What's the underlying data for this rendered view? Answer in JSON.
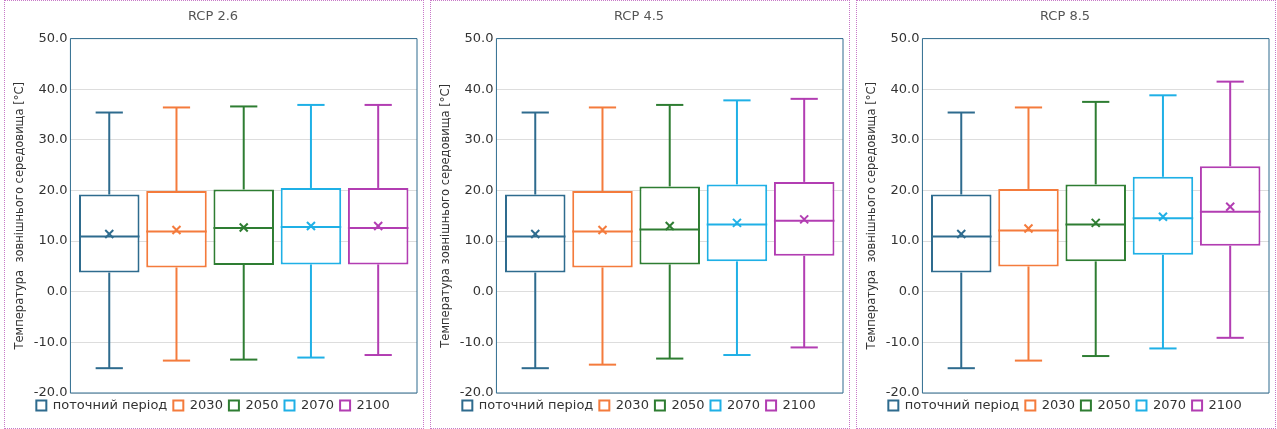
{
  "chart_data": [
    {
      "type": "box",
      "title": "RCP 2.6",
      "ylabel": "Температура  зовнішнього середовища [°C]",
      "categories": [
        null
      ],
      "ylim": [
        -20,
        50
      ],
      "yticks": [
        {
          "value": -20,
          "label": "-20.0"
        },
        {
          "value": -10,
          "label": "-10.0"
        },
        {
          "value": 0,
          "label": "0.0"
        },
        {
          "value": 10,
          "label": "10.0"
        },
        {
          "value": 20,
          "label": "20.0"
        },
        {
          "value": 30,
          "label": "30.0"
        },
        {
          "value": 40,
          "label": "40.0"
        },
        {
          "value": 50,
          "label": "50.0"
        }
      ],
      "grid": "y",
      "legend": "bottom",
      "tick_labels": "y",
      "series": [
        {
          "name": "поточний період",
          "color": "#2e6b8e",
          "boxes": [
            {
              "low": -15.1,
              "q1": 3.8,
              "median": 10.9,
              "q3": 19.2,
              "high": 35.4,
              "mean": 11.4
            }
          ]
        },
        {
          "name": "2030",
          "color": "#f47b3c",
          "boxes": [
            {
              "low": -13.6,
              "q1": 4.8,
              "median": 11.9,
              "q3": 19.9,
              "high": 36.4,
              "mean": 12.2
            }
          ]
        },
        {
          "name": "2050",
          "color": "#2e7d32",
          "boxes": [
            {
              "low": -13.4,
              "q1": 5.3,
              "median": 12.6,
              "q3": 20.2,
              "high": 36.6,
              "mean": 12.7
            }
          ]
        },
        {
          "name": "2070",
          "color": "#1fb0e6",
          "boxes": [
            {
              "low": -13.0,
              "q1": 5.4,
              "median": 12.8,
              "q3": 20.5,
              "high": 36.9,
              "mean": 13.0
            }
          ]
        },
        {
          "name": "2100",
          "color": "#b23db2",
          "boxes": [
            {
              "low": -12.5,
              "q1": 5.4,
              "median": 12.6,
              "q3": 20.5,
              "high": 36.9,
              "mean": 13.0
            }
          ]
        }
      ]
    },
    {
      "type": "box",
      "title": "RCP 4.5",
      "ylabel": "Температура зовнішнього середовища [°C]",
      "categories": [
        null
      ],
      "ylim": [
        -20,
        50
      ],
      "yticks": [
        {
          "value": -20,
          "label": "-20.0"
        },
        {
          "value": -10,
          "label": "-10.0"
        },
        {
          "value": 0,
          "label": "0.0"
        },
        {
          "value": 10,
          "label": "10.0"
        },
        {
          "value": 20,
          "label": "20.0"
        },
        {
          "value": 30,
          "label": "30.0"
        },
        {
          "value": 40,
          "label": "40.0"
        },
        {
          "value": 50,
          "label": "50.0"
        }
      ],
      "grid": "y",
      "legend": "bottom",
      "tick_labels": "y",
      "series": [
        {
          "name": "поточний період",
          "color": "#2e6b8e",
          "boxes": [
            {
              "low": -15.1,
              "q1": 3.8,
              "median": 10.9,
              "q3": 19.2,
              "high": 35.4,
              "mean": 11.4
            }
          ]
        },
        {
          "name": "2030",
          "color": "#f47b3c",
          "boxes": [
            {
              "low": -14.4,
              "q1": 4.8,
              "median": 11.9,
              "q3": 19.9,
              "high": 36.4,
              "mean": 12.2
            }
          ]
        },
        {
          "name": "2050",
          "color": "#2e7d32",
          "boxes": [
            {
              "low": -13.2,
              "q1": 5.4,
              "median": 12.3,
              "q3": 20.8,
              "high": 36.9,
              "mean": 13.0
            }
          ]
        },
        {
          "name": "2070",
          "color": "#1fb0e6",
          "boxes": [
            {
              "low": -12.5,
              "q1": 6.0,
              "median": 13.3,
              "q3": 21.2,
              "high": 37.8,
              "mean": 13.6
            }
          ]
        },
        {
          "name": "2100",
          "color": "#b23db2",
          "boxes": [
            {
              "low": -11.0,
              "q1": 7.1,
              "median": 14.0,
              "q3": 21.7,
              "high": 38.1,
              "mean": 14.3
            }
          ]
        }
      ]
    },
    {
      "type": "box",
      "title": "RCP 8.5",
      "ylabel": "Температура  зовнішнього середовища [°C]",
      "categories": [
        null
      ],
      "ylim": [
        -20,
        50
      ],
      "yticks": [
        {
          "value": -20,
          "label": "-20.0"
        },
        {
          "value": -10,
          "label": "-10.0"
        },
        {
          "value": 0,
          "label": "0.0"
        },
        {
          "value": 10,
          "label": "10.0"
        },
        {
          "value": 20,
          "label": "20.0"
        },
        {
          "value": 30,
          "label": "30.0"
        },
        {
          "value": 40,
          "label": "40.0"
        },
        {
          "value": 50,
          "label": "50.0"
        }
      ],
      "grid": "y",
      "legend": "bottom",
      "tick_labels": "y",
      "series": [
        {
          "name": "поточний період",
          "color": "#2e6b8e",
          "boxes": [
            {
              "low": -15.1,
              "q1": 3.8,
              "median": 10.9,
              "q3": 19.2,
              "high": 35.4,
              "mean": 11.4
            }
          ]
        },
        {
          "name": "2030",
          "color": "#f47b3c",
          "boxes": [
            {
              "low": -13.6,
              "q1": 5.0,
              "median": 12.1,
              "q3": 20.3,
              "high": 36.4,
              "mean": 12.5
            }
          ]
        },
        {
          "name": "2050",
          "color": "#2e7d32",
          "boxes": [
            {
              "low": -12.7,
              "q1": 6.0,
              "median": 13.3,
              "q3": 21.2,
              "high": 37.5,
              "mean": 13.6
            }
          ]
        },
        {
          "name": "2070",
          "color": "#1fb0e6",
          "boxes": [
            {
              "low": -11.2,
              "q1": 7.3,
              "median": 14.5,
              "q3": 22.7,
              "high": 38.8,
              "mean": 14.8
            }
          ]
        },
        {
          "name": "2100",
          "color": "#b23db2",
          "boxes": [
            {
              "low": -9.1,
              "q1": 9.1,
              "median": 15.8,
              "q3": 24.8,
              "high": 41.5,
              "mean": 16.8
            }
          ]
        }
      ]
    }
  ]
}
